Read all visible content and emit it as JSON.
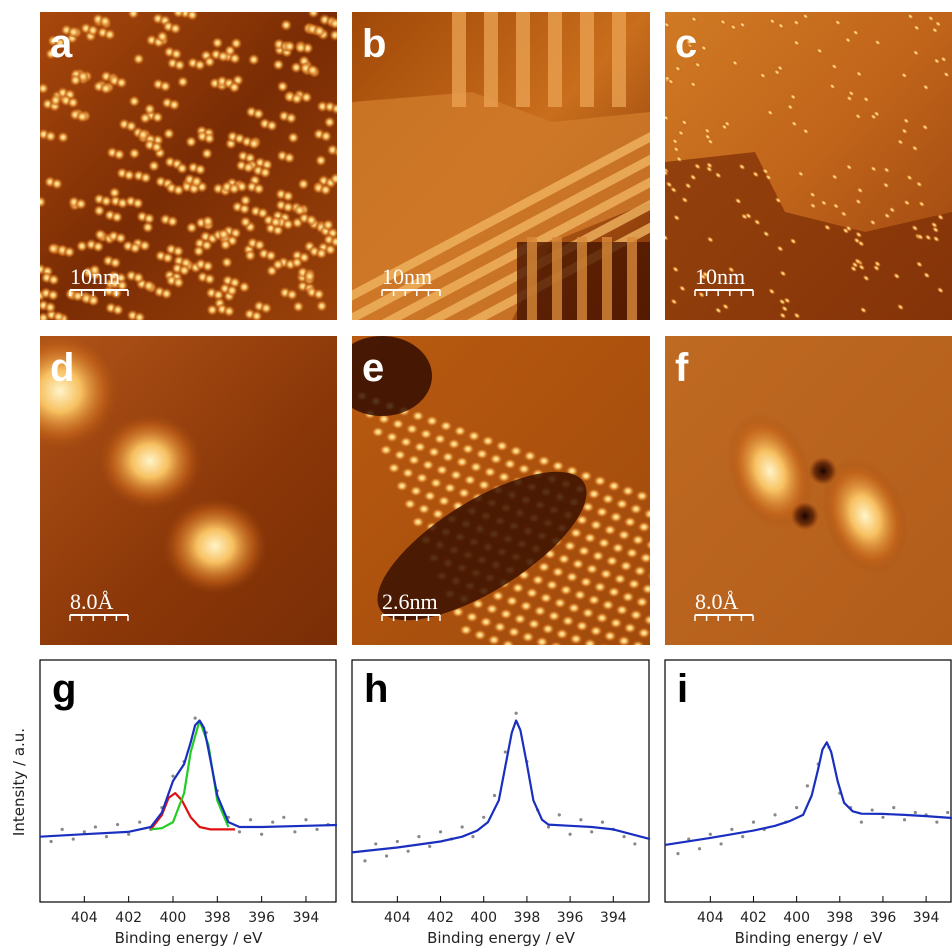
{
  "images": [
    {
      "label": "a",
      "scale": "10nm"
    },
    {
      "label": "b",
      "scale": "10nm"
    },
    {
      "label": "c",
      "scale": "10nm"
    },
    {
      "label": "d",
      "scale": "8.0Å"
    },
    {
      "label": "e",
      "scale": "2.6nm"
    },
    {
      "label": "f",
      "scale": "8.0Å"
    }
  ],
  "chart_data": [
    {
      "type": "line",
      "label": "g",
      "x_label": "Binding energy / eV",
      "y_label": "Intensity / a.u.",
      "xlim": [
        406,
        392.6
      ],
      "ylim": [
        0,
        100
      ],
      "xticks": [
        404,
        402,
        400,
        398,
        396,
        394
      ],
      "series": [
        {
          "color": "#888888",
          "style": "dots",
          "x": [
            405.5,
            405,
            404.5,
            404,
            403.5,
            403,
            402.5,
            402,
            401.5,
            401,
            400.5,
            400,
            399.5,
            399,
            398.5,
            398,
            397.5,
            397,
            396.5,
            396,
            395.5,
            395,
            394.5,
            394,
            393.5,
            393
          ],
          "values": [
            25,
            30,
            26,
            29,
            31,
            27,
            32,
            28,
            33,
            30,
            39,
            52,
            58,
            76,
            70,
            46,
            35,
            29,
            34,
            28,
            33,
            35,
            29,
            34,
            30,
            32
          ]
        },
        {
          "color": "#e01010",
          "style": "line",
          "x": [
            401,
            400.5,
            400.2,
            399.9,
            399.6,
            399.2,
            398.8,
            398.3,
            397.5,
            397.2
          ],
          "values": [
            30,
            36,
            43,
            45,
            42,
            35,
            31,
            30,
            30,
            30
          ]
        },
        {
          "color": "#22cc22",
          "style": "line",
          "x": [
            401,
            400.5,
            400,
            399.5,
            399.2,
            398.8,
            398.4,
            398,
            397.5
          ],
          "values": [
            30,
            30.5,
            33,
            45,
            62,
            75,
            65,
            42,
            31
          ]
        },
        {
          "color": "#1a2fc0",
          "style": "line",
          "x": [
            406,
            404,
            402,
            401,
            400.5,
            400,
            399.5,
            399.2,
            399,
            398.8,
            398.6,
            398.4,
            398,
            397.5,
            397,
            396,
            394,
            392.6
          ],
          "values": [
            27,
            28,
            29,
            31,
            37,
            50,
            57,
            66,
            73,
            75,
            72,
            63,
            44,
            33,
            31,
            31,
            31.5,
            31.8
          ]
        }
      ]
    },
    {
      "type": "line",
      "label": "h",
      "x_label": "Binding energy / eV",
      "xlim": [
        406.1,
        392.3
      ],
      "ylim": [
        0,
        100
      ],
      "xticks": [
        404,
        402,
        400,
        398,
        396,
        394
      ],
      "series": [
        {
          "color": "#888888",
          "style": "dots",
          "x": [
            405.5,
            405,
            404.5,
            404,
            403.5,
            403,
            402.5,
            402,
            401.5,
            401,
            400.5,
            400,
            399.5,
            399,
            398.5,
            398,
            397.5,
            397,
            396.5,
            396,
            395.5,
            395,
            394.5,
            394,
            393.5,
            393
          ],
          "values": [
            17,
            24,
            19,
            25,
            21,
            27,
            23,
            29,
            26,
            31,
            27,
            35,
            44,
            62,
            78,
            58,
            38,
            31,
            36,
            28,
            34,
            29,
            33,
            30,
            27,
            24
          ]
        },
        {
          "color": "#1a2fc0",
          "style": "line",
          "x": [
            406.1,
            404,
            402,
            401,
            400.3,
            399.8,
            399.3,
            399,
            398.7,
            398.5,
            398.3,
            398,
            397.7,
            397.3,
            397,
            396,
            395,
            394,
            392.3
          ],
          "values": [
            20.5,
            22.5,
            25,
            27,
            29.5,
            33,
            42,
            56,
            70,
            75,
            71,
            57,
            42,
            34,
            32,
            31.5,
            31,
            30,
            26
          ]
        }
      ]
    },
    {
      "type": "line",
      "label": "i",
      "x_label": "Binding energy / eV",
      "xlim": [
        406.1,
        392.8
      ],
      "ylim": [
        0,
        100
      ],
      "xticks": [
        404,
        402,
        400,
        398,
        396,
        394
      ],
      "series": [
        {
          "color": "#888888",
          "style": "dots",
          "x": [
            405.5,
            405,
            404.5,
            404,
            403.5,
            403,
            402.5,
            402,
            401.5,
            401,
            400.5,
            400,
            399.5,
            399,
            398.5,
            398,
            397.5,
            397,
            396.5,
            396,
            395.5,
            395,
            394.5,
            394,
            393.5,
            393
          ],
          "values": [
            20,
            26,
            22,
            28,
            24,
            30,
            27,
            33,
            30,
            36,
            33,
            39,
            48,
            57,
            64,
            45,
            39,
            33,
            38,
            35,
            39,
            34,
            37,
            36,
            33,
            37
          ]
        },
        {
          "color": "#1a2fc0",
          "style": "line",
          "x": [
            406.1,
            404,
            402,
            401,
            400.3,
            399.7,
            399.3,
            399,
            398.8,
            398.6,
            398.4,
            398.1,
            397.8,
            397.4,
            397,
            396,
            395,
            394,
            392.8
          ],
          "values": [
            23.6,
            26.5,
            29.5,
            31.5,
            33.5,
            36,
            44,
            55,
            63,
            66,
            62,
            50,
            41,
            37.5,
            36.5,
            36.4,
            36,
            35.5,
            34.7
          ]
        }
      ]
    }
  ]
}
